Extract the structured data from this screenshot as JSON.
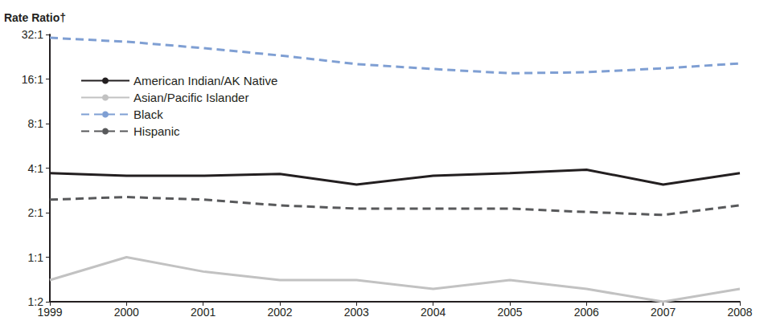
{
  "chart_data": {
    "type": "line",
    "y_label": "Rate Ratio†",
    "log": "y",
    "grid": false,
    "legend": "top-left",
    "categories": [
      "1999",
      "2000",
      "2001",
      "2002",
      "2003",
      "2004",
      "2005",
      "2006",
      "2007",
      "2008"
    ],
    "ylim": [
      0.5,
      32
    ],
    "yticks": [
      {
        "value": 0.5,
        "label": "1:2"
      },
      {
        "value": 1,
        "label": "1:1"
      },
      {
        "value": 2,
        "label": "2:1"
      },
      {
        "value": 4,
        "label": "4:1"
      },
      {
        "value": 8,
        "label": "8:1"
      },
      {
        "value": 16,
        "label": "16:1"
      },
      {
        "value": 32,
        "label": "32:1"
      }
    ],
    "series": [
      {
        "name": "American Indian/AK Native",
        "color": "#231f20",
        "line_style": "solid",
        "values": [
          3.7,
          3.55,
          3.55,
          3.65,
          3.1,
          3.55,
          3.7,
          3.9,
          3.1,
          3.7
        ]
      },
      {
        "name": "Asian/Pacific Islander",
        "color": "#c2c2c2",
        "line_style": "solid",
        "values": [
          0.7,
          1.0,
          0.8,
          0.7,
          0.7,
          0.61,
          0.7,
          0.61,
          0.5,
          0.61
        ]
      },
      {
        "name": "Black",
        "color": "#7f9fd3",
        "line_style": "dashed",
        "values": [
          30.4,
          28.6,
          25.9,
          23.1,
          20.2,
          18.7,
          17.5,
          17.8,
          18.9,
          20.4
        ]
      },
      {
        "name": "Hispanic",
        "color": "#58595b",
        "line_style": "dashed",
        "values": [
          2.45,
          2.55,
          2.45,
          2.24,
          2.13,
          2.13,
          2.13,
          2.02,
          1.93,
          2.24
        ]
      }
    ]
  }
}
